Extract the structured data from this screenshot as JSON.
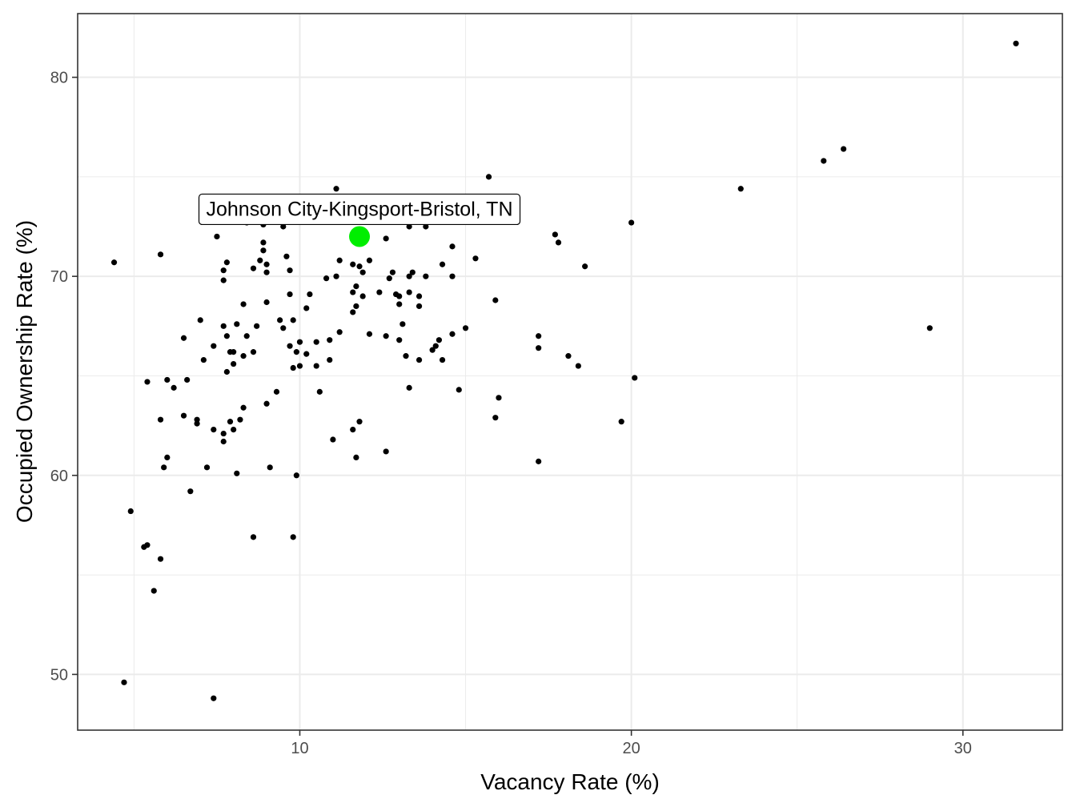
{
  "chart_data": {
    "type": "scatter",
    "xlabel": "Vacancy Rate (%)",
    "ylabel": "Occupied Ownership Rate (%)",
    "xlim": [
      3.3,
      33.0
    ],
    "ylim": [
      47.2,
      83.2
    ],
    "x_ticks": [
      10,
      20,
      30
    ],
    "y_ticks": [
      50,
      60,
      70,
      80
    ],
    "x_minor": [
      5,
      15,
      25
    ],
    "y_minor": [
      55,
      65,
      75
    ],
    "grid": true,
    "colors": {
      "point": "#000000",
      "highlight": "#00ee00",
      "grid": "#ebebeb",
      "panel_border": "#333333"
    },
    "highlight": {
      "label": "Johnson City-Kingsport-Bristol, TN",
      "x": 11.8,
      "y": 72.0
    },
    "points": [
      [
        31.6,
        81.7
      ],
      [
        26.4,
        76.4
      ],
      [
        25.8,
        75.8
      ],
      [
        23.3,
        74.4
      ],
      [
        29.0,
        67.4
      ],
      [
        20.0,
        72.7
      ],
      [
        20.1,
        64.9
      ],
      [
        19.7,
        62.7
      ],
      [
        18.6,
        70.5
      ],
      [
        18.4,
        65.5
      ],
      [
        18.1,
        66.0
      ],
      [
        17.8,
        71.7
      ],
      [
        17.7,
        72.1
      ],
      [
        17.2,
        67.0
      ],
      [
        17.2,
        66.4
      ],
      [
        17.2,
        60.7
      ],
      [
        16.0,
        63.9
      ],
      [
        15.9,
        68.8
      ],
      [
        15.9,
        62.9
      ],
      [
        15.7,
        75.0
      ],
      [
        15.3,
        70.9
      ],
      [
        15.0,
        67.4
      ],
      [
        14.8,
        64.3
      ],
      [
        14.6,
        71.5
      ],
      [
        14.6,
        70.0
      ],
      [
        14.6,
        67.1
      ],
      [
        14.3,
        70.6
      ],
      [
        14.3,
        65.8
      ],
      [
        14.2,
        66.8
      ],
      [
        14.1,
        66.5
      ],
      [
        14.0,
        66.3
      ],
      [
        13.8,
        72.5
      ],
      [
        13.8,
        70.0
      ],
      [
        13.6,
        69.0
      ],
      [
        13.6,
        68.5
      ],
      [
        13.6,
        65.8
      ],
      [
        13.4,
        70.2
      ],
      [
        13.3,
        70.0
      ],
      [
        13.3,
        69.2
      ],
      [
        13.3,
        64.4
      ],
      [
        13.2,
        66.0
      ],
      [
        13.3,
        72.5
      ],
      [
        13.1,
        67.6
      ],
      [
        13.0,
        66.8
      ],
      [
        13.0,
        69.0
      ],
      [
        13.0,
        68.6
      ],
      [
        12.9,
        69.1
      ],
      [
        12.8,
        70.2
      ],
      [
        12.7,
        69.9
      ],
      [
        12.6,
        71.9
      ],
      [
        12.6,
        67.0
      ],
      [
        12.6,
        61.2
      ],
      [
        12.4,
        69.2
      ],
      [
        12.1,
        70.8
      ],
      [
        12.1,
        67.1
      ],
      [
        11.9,
        70.2
      ],
      [
        11.9,
        69.0
      ],
      [
        11.8,
        70.5
      ],
      [
        11.7,
        69.5
      ],
      [
        11.7,
        68.5
      ],
      [
        11.7,
        60.9
      ],
      [
        11.8,
        62.7
      ],
      [
        11.6,
        62.3
      ],
      [
        11.6,
        69.2
      ],
      [
        11.6,
        68.2
      ],
      [
        11.6,
        70.6
      ],
      [
        11.2,
        70.8
      ],
      [
        11.2,
        67.2
      ],
      [
        11.1,
        70.0
      ],
      [
        11.0,
        61.8
      ],
      [
        10.9,
        66.8
      ],
      [
        10.9,
        65.8
      ],
      [
        10.8,
        69.9
      ],
      [
        10.6,
        64.2
      ],
      [
        10.5,
        66.7
      ],
      [
        10.5,
        65.5
      ],
      [
        10.3,
        69.1
      ],
      [
        10.2,
        68.4
      ],
      [
        10.2,
        66.1
      ],
      [
        10.0,
        66.7
      ],
      [
        10.0,
        65.5
      ],
      [
        9.9,
        66.2
      ],
      [
        9.8,
        65.4
      ],
      [
        9.8,
        67.8
      ],
      [
        9.7,
        66.5
      ],
      [
        9.7,
        69.1
      ],
      [
        9.7,
        70.3
      ],
      [
        9.6,
        71.0
      ],
      [
        9.5,
        72.5
      ],
      [
        9.5,
        67.4
      ],
      [
        9.4,
        67.8
      ],
      [
        9.3,
        64.2
      ],
      [
        9.1,
        60.4
      ],
      [
        9.0,
        63.6
      ],
      [
        9.0,
        68.7
      ],
      [
        9.0,
        70.2
      ],
      [
        9.0,
        70.6
      ],
      [
        8.9,
        71.3
      ],
      [
        8.9,
        71.7
      ],
      [
        8.8,
        70.8
      ],
      [
        8.9,
        72.6
      ],
      [
        8.7,
        67.5
      ],
      [
        8.6,
        66.2
      ],
      [
        8.6,
        70.4
      ],
      [
        8.4,
        72.7
      ],
      [
        8.4,
        67.0
      ],
      [
        8.3,
        66.0
      ],
      [
        8.3,
        68.6
      ],
      [
        8.3,
        63.4
      ],
      [
        8.2,
        62.8
      ],
      [
        8.1,
        60.1
      ],
      [
        8.1,
        67.6
      ],
      [
        8.0,
        65.6
      ],
      [
        8.0,
        66.2
      ],
      [
        8.0,
        62.3
      ],
      [
        7.9,
        62.7
      ],
      [
        7.9,
        66.2
      ],
      [
        7.8,
        67.0
      ],
      [
        7.8,
        65.2
      ],
      [
        7.7,
        67.5
      ],
      [
        7.8,
        70.7
      ],
      [
        7.7,
        70.3
      ],
      [
        7.7,
        69.8
      ],
      [
        7.7,
        61.7
      ],
      [
        7.7,
        62.1
      ],
      [
        7.5,
        72.0
      ],
      [
        7.4,
        66.5
      ],
      [
        7.4,
        62.3
      ],
      [
        7.2,
        60.4
      ],
      [
        7.1,
        65.8
      ],
      [
        7.0,
        67.8
      ],
      [
        6.9,
        62.8
      ],
      [
        6.9,
        62.6
      ],
      [
        6.7,
        59.2
      ],
      [
        6.6,
        64.8
      ],
      [
        6.5,
        66.9
      ],
      [
        6.5,
        63.0
      ],
      [
        6.2,
        64.4
      ],
      [
        6.0,
        64.8
      ],
      [
        6.0,
        60.9
      ],
      [
        5.9,
        60.4
      ],
      [
        5.8,
        62.8
      ],
      [
        5.8,
        71.1
      ],
      [
        5.8,
        55.8
      ],
      [
        5.6,
        54.2
      ],
      [
        5.4,
        64.7
      ],
      [
        5.3,
        56.4
      ],
      [
        5.4,
        56.5
      ],
      [
        4.9,
        58.2
      ],
      [
        4.7,
        49.6
      ],
      [
        4.4,
        70.7
      ],
      [
        7.4,
        48.8
      ],
      [
        8.6,
        56.9
      ],
      [
        9.8,
        56.9
      ],
      [
        9.9,
        60.0
      ],
      [
        12.5,
        72.8
      ],
      [
        11.1,
        74.4
      ]
    ]
  }
}
